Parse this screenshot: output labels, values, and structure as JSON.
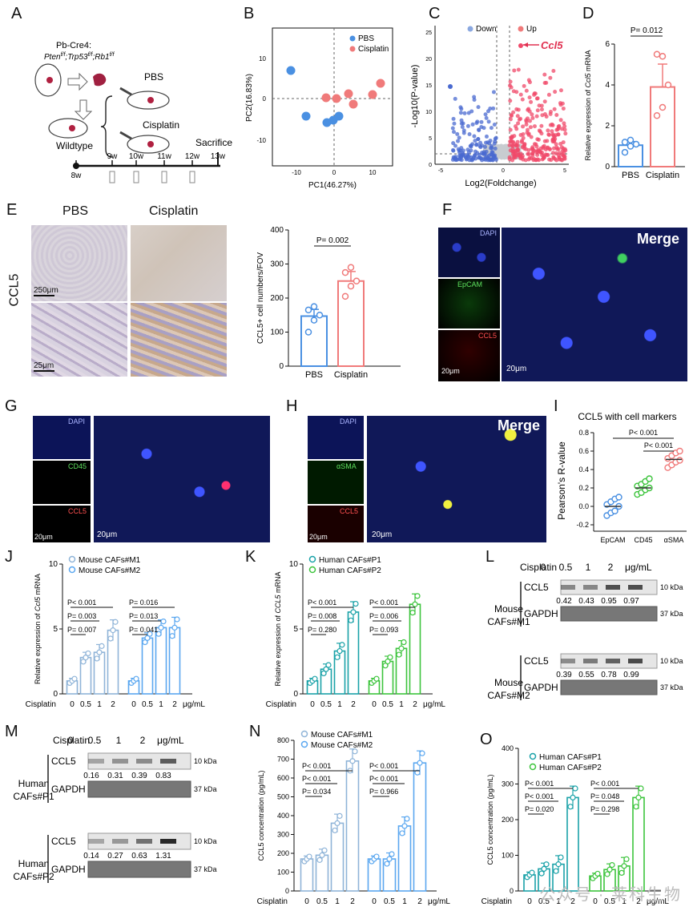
{
  "panels": {
    "A": {
      "letter": "A",
      "mouse_top": "Pb-Cre4:",
      "genotype": "Pten",
      "genotype2": "Trp53",
      "genotype3": "Rb1",
      "sup": "f/f",
      "pbs": "PBS",
      "cisplatin": "Cisplatin",
      "wildtype": "Wildtype",
      "sacrifice": "Sacrifice",
      "weeks": [
        "8w",
        "9w",
        "10w",
        "11w",
        "12w",
        "13w"
      ]
    },
    "B": {
      "letter": "B",
      "legend": [
        "PBS",
        "Cisplatin"
      ],
      "xlabel": "PC1(46.27%)",
      "ylabel": "PC2(16.83%)",
      "xticks": [
        "-10",
        "0",
        "10"
      ],
      "yticks": [
        "10",
        "0",
        "-10"
      ]
    },
    "C": {
      "letter": "C",
      "legend": [
        "Down",
        "Up"
      ],
      "annot": "Ccl5",
      "xlabel": "Log2(Foldchange)",
      "ylabel": "-Log10(P-value)",
      "xticks": [
        "-5",
        "0",
        "5"
      ],
      "yticks": [
        "0",
        "5",
        "10",
        "15",
        "20",
        "25"
      ]
    },
    "D": {
      "letter": "D",
      "pval": "P= 0.012",
      "ylabel_pre": "Relative expression of ",
      "ylabel_it": "Ccl5",
      "ylabel_post": " mRNA",
      "yticks": [
        "0",
        "2",
        "4",
        "6"
      ],
      "cats": [
        "PBS",
        "Cisplatin"
      ]
    },
    "E": {
      "letter": "E",
      "col1": "PBS",
      "col2": "Cisplatin",
      "rowlabel": "CCL5",
      "scale1": "250μm",
      "scale2": "25μm",
      "pval": "P= 0.002",
      "ylabel": "CCL5+ cell numbers/FOV",
      "yticks": [
        "0",
        "100",
        "200",
        "300",
        "400"
      ],
      "cats": [
        "PBS",
        "Cisplatin"
      ]
    },
    "F": {
      "letter": "F",
      "ch": [
        "DAPI",
        "EpCAM",
        "CCL5"
      ],
      "merge": "Merge",
      "scale": "20μm",
      "scale2": "20μm"
    },
    "G": {
      "letter": "G",
      "ch": [
        "DAPI",
        "CD45",
        "CCL5"
      ],
      "scale": "20μm",
      "scale2": "20μm"
    },
    "H": {
      "letter": "H",
      "ch": [
        "DAPI",
        "αSMA",
        "CCL5"
      ],
      "merge": "Merge",
      "scale": "20μm",
      "scale2": "20μm"
    },
    "I": {
      "letter": "I",
      "title": "CCL5 with cell markers",
      "p1": "P< 0.001",
      "p2": "P< 0.001",
      "ylabel": "Pearson's R-value",
      "yticks": [
        "-0.2",
        "0.0",
        "0.2",
        "0.4",
        "0.6",
        "0.8"
      ],
      "cats": [
        "EpCAM",
        "CD45",
        "αSMA"
      ]
    },
    "J": {
      "letter": "J",
      "legend": [
        "Mouse CAFs#M1",
        "Mouse CAFs#M2"
      ],
      "pvals_left": [
        "P< 0.001",
        "P= 0.003",
        "P= 0.007"
      ],
      "pvals_right": [
        "P= 0.016",
        "P= 0.013",
        "P= 0.041"
      ],
      "ylabel_pre": "Relative expression of ",
      "ylabel_it": "Ccl5",
      "ylabel_post": " mRNA",
      "yticks": [
        "0",
        "5",
        "10"
      ],
      "xrow_label": "Cisplatin",
      "xcats": [
        "0",
        "0.5",
        "1",
        "2",
        "0",
        "0.5",
        "1",
        "2"
      ],
      "unit": "μg/mL"
    },
    "K": {
      "letter": "K",
      "legend": [
        "Human CAFs#P1",
        "Human CAFs#P2"
      ],
      "pvals_left": [
        "P< 0.001",
        "P= 0.008",
        "P= 0.280"
      ],
      "pvals_right": [
        "P< 0.001",
        "P= 0.006",
        "P= 0.093"
      ],
      "ylabel_pre": "Relative expression of ",
      "ylabel_it": "CCL5",
      "ylabel_post": " mRNA",
      "yticks": [
        "0",
        "5",
        "10"
      ],
      "xrow_label": "Cisplatin",
      "xcats": [
        "0",
        "0.5",
        "1",
        "2",
        "0",
        "0.5",
        "1",
        "2"
      ],
      "unit": "μg/mL"
    },
    "L": {
      "letter": "L",
      "cis": "Cisplatin",
      "doses": [
        "0",
        "0.5",
        "1",
        "2"
      ],
      "unit": "μg/mL",
      "blocks": [
        {
          "label1": "Mouse",
          "label2": "CAFs#M1",
          "band1": "CCL5",
          "quant": [
            "0.42",
            "0.43",
            "0.95",
            "0.97"
          ],
          "band2": "GAPDH",
          "kda1": "10 kDa",
          "kda2": "37 kDa"
        },
        {
          "label1": "Mouse",
          "label2": "CAFs#M2",
          "band1": "CCL5",
          "quant": [
            "0.39",
            "0.55",
            "0.78",
            "0.99"
          ],
          "band2": "GAPDH",
          "kda1": "10 kDa",
          "kda2": "37 kDa"
        }
      ]
    },
    "M": {
      "letter": "M",
      "cis": "Cisplatin",
      "doses": [
        "0",
        "0.5",
        "1",
        "2"
      ],
      "unit": "μg/mL",
      "blocks": [
        {
          "label1": "Human",
          "label2": "CAFs#P1",
          "band1": "CCL5",
          "quant": [
            "0.16",
            "0.31",
            "0.39",
            "0.83"
          ],
          "band2": "GAPDH",
          "kda1": "10 kDa",
          "kda2": "37 kDa"
        },
        {
          "label1": "Human",
          "label2": "CAFs#P2",
          "band1": "CCL5",
          "quant": [
            "0.14",
            "0.27",
            "0.63",
            "1.31"
          ],
          "band2": "GAPDH",
          "kda1": "10 kDa",
          "kda2": "37 kDa"
        }
      ]
    },
    "N": {
      "letter": "N",
      "legend": [
        "Mouse CAFs#M1",
        "Mouse CAFs#M2"
      ],
      "pvals_left": [
        "P< 0.001",
        "P< 0.001",
        "P= 0.034"
      ],
      "pvals_right": [
        "P< 0.001",
        "P< 0.001",
        "P= 0.966"
      ],
      "ylabel": "CCL5 concentration (pg/mL)",
      "yticks": [
        "0",
        "100",
        "200",
        "300",
        "400",
        "500",
        "600",
        "700",
        "800"
      ],
      "xrow_label": "Cisplatin",
      "xcats": [
        "0",
        "0.5",
        "1",
        "2",
        "0",
        "0.5",
        "1",
        "2"
      ],
      "unit": "μg/mL"
    },
    "O": {
      "letter": "O",
      "legend": [
        "Human CAFs#P1",
        "Human CAFs#P2"
      ],
      "pvals_left": [
        "P< 0.001",
        "P< 0.001",
        "P= 0.020"
      ],
      "pvals_right": [
        "P< 0.001",
        "P= 0.048",
        "P= 0.298"
      ],
      "ylabel": "CCL5 concentration (pg/mL)",
      "yticks": [
        "0",
        "100",
        "200",
        "300",
        "400"
      ],
      "xrow_label": "Cisplatin",
      "xcats": [
        "0",
        "0.5",
        "1",
        "2",
        "0",
        "0.5",
        "1",
        "2"
      ],
      "unit": "μg/mL"
    }
  },
  "watermark": "公众号 · 莱科生物",
  "colors": {
    "pbs": "#4a90e2",
    "cis": "#f07a7a",
    "m1": "#8fb4d8",
    "m2": "#5aa7f0",
    "p1": "#1aa2a8",
    "p2": "#3cc43c",
    "down": "#4a6ad0",
    "up": "#f04a6a",
    "grey": "#c8ccd0"
  },
  "chart_data": [
    {
      "id": "D",
      "type": "bar",
      "categories": [
        "PBS",
        "Cisplatin"
      ],
      "values": [
        1.05,
        3.9
      ],
      "ylim": [
        0,
        6
      ],
      "points": [
        [
          0.7,
          1.0,
          1.1,
          1.2,
          1.3
        ],
        [
          2.5,
          2.9,
          4.0,
          5.5,
          5.4
        ]
      ]
    },
    {
      "id": "E",
      "type": "bar",
      "categories": [
        "PBS",
        "Cisplatin"
      ],
      "values": [
        147,
        250
      ],
      "ylim": [
        0,
        400
      ],
      "points": [
        [
          100,
          135,
          150,
          165,
          175
        ],
        [
          205,
          235,
          250,
          275,
          290
        ]
      ]
    },
    {
      "id": "I",
      "type": "scatter",
      "categories": [
        "EpCAM",
        "CD45",
        "αSMA"
      ],
      "values": [
        0.0,
        0.2,
        0.51
      ],
      "ylim": [
        -0.2,
        0.8
      ],
      "points": [
        [
          -0.1,
          -0.07,
          -0.05,
          0.0,
          0.02,
          0.05,
          0.08,
          0.1
        ],
        [
          0.13,
          0.15,
          0.18,
          0.2,
          0.22,
          0.24,
          0.27,
          0.3
        ],
        [
          0.42,
          0.45,
          0.48,
          0.5,
          0.52,
          0.55,
          0.58,
          0.6
        ]
      ]
    },
    {
      "id": "J",
      "type": "bar",
      "categories": [
        "0",
        "0.5",
        "1",
        "2",
        "0",
        "0.5",
        "1",
        "2"
      ],
      "values": [
        1.0,
        2.8,
        3.2,
        4.9,
        1.0,
        4.3,
        5.1,
        5.1
      ],
      "ylim": [
        0,
        10
      ]
    },
    {
      "id": "K",
      "type": "bar",
      "categories": [
        "0",
        "0.5",
        "1",
        "2",
        "0",
        "0.5",
        "1",
        "2"
      ],
      "values": [
        1.0,
        1.9,
        3.3,
        6.3,
        1.0,
        2.5,
        3.5,
        6.9
      ],
      "ylim": [
        0,
        10
      ]
    },
    {
      "id": "N",
      "type": "bar",
      "categories": [
        "0",
        "0.5",
        "1",
        "2",
        "0",
        "0.5",
        "1",
        "2"
      ],
      "values": [
        170,
        190,
        360,
        690,
        170,
        170,
        345,
        680
      ],
      "ylim": [
        0,
        800
      ]
    },
    {
      "id": "O",
      "type": "bar",
      "categories": [
        "0",
        "0.5",
        "1",
        "2",
        "0",
        "0.5",
        "1",
        "2"
      ],
      "values": [
        45,
        62,
        75,
        262,
        42,
        60,
        70,
        262
      ],
      "ylim": [
        0,
        400
      ]
    }
  ]
}
